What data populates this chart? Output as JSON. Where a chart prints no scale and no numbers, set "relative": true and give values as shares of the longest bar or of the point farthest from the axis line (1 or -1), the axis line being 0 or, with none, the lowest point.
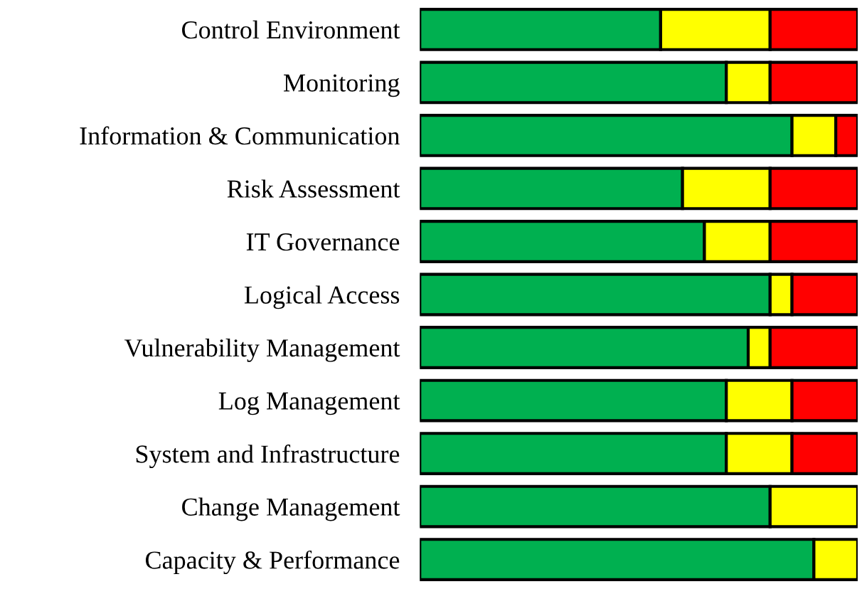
{
  "chart_data": {
    "type": "bar",
    "orientation": "horizontal",
    "stacked": true,
    "relative": true,
    "categories": [
      "Control Environment",
      "Monitoring",
      "Information & Communication",
      "Risk Assessment",
      "IT Governance",
      "Logical Access",
      "Vulnerability Management",
      "Log Management",
      "System and Infrastructure",
      "Change Management",
      "Capacity & Performance"
    ],
    "series": [
      {
        "color": "#00b050",
        "values": [
          0.55,
          0.7,
          0.85,
          0.6,
          0.65,
          0.8,
          0.75,
          0.7,
          0.7,
          0.8,
          0.9
        ]
      },
      {
        "color": "#ffff00",
        "values": [
          0.25,
          0.1,
          0.1,
          0.2,
          0.15,
          0.05,
          0.05,
          0.15,
          0.15,
          0.2,
          0.1
        ]
      },
      {
        "color": "#ff0000",
        "values": [
          0.2,
          0.2,
          0.05,
          0.2,
          0.2,
          0.15,
          0.2,
          0.15,
          0.15,
          null,
          null
        ]
      }
    ]
  }
}
